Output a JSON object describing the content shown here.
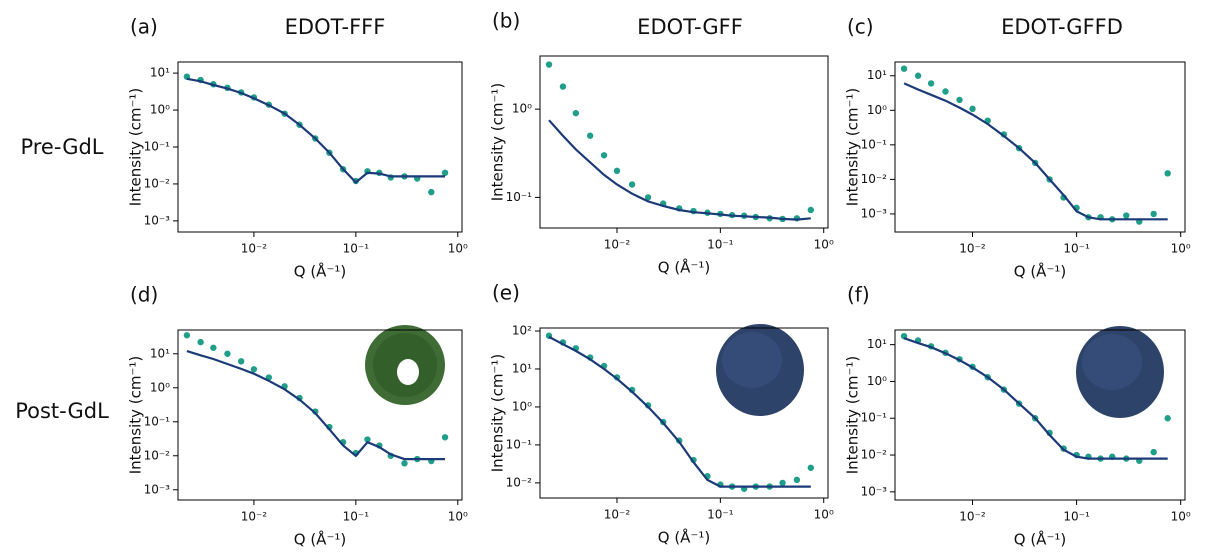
{
  "column_titles": [
    "EDOT-FFF",
    "EDOT-GFF",
    "EDOT-GFFD"
  ],
  "row_labels": [
    "Pre-GdL",
    "Post-GdL"
  ],
  "chart_data": [
    {
      "type": "scatter",
      "label": "(a)",
      "xlabel": "Q (Å⁻¹)",
      "ylabel": "Intensity (cm⁻¹)",
      "log_x": true,
      "log_y": true,
      "x": [
        0.0022,
        0.003,
        0.004,
        0.0055,
        0.0075,
        0.01,
        0.014,
        0.02,
        0.028,
        0.04,
        0.055,
        0.075,
        0.1,
        0.13,
        0.17,
        0.22,
        0.3,
        0.4,
        0.55,
        0.75
      ],
      "series": [
        {
          "kind": "points",
          "color": "#1f9e89",
          "values": [
            8,
            6.5,
            5,
            4,
            3,
            2.2,
            1.4,
            0.8,
            0.4,
            0.17,
            0.07,
            0.025,
            0.012,
            0.022,
            0.02,
            0.015,
            0.016,
            0.014,
            0.006,
            0.02
          ]
        },
        {
          "kind": "line",
          "color": "#1b3a78",
          "values": [
            7,
            6,
            4.8,
            3.8,
            2.9,
            2.1,
            1.35,
            0.8,
            0.4,
            0.17,
            0.07,
            0.025,
            0.011,
            0.02,
            0.019,
            0.016,
            0.016,
            0.016,
            0.016,
            0.016
          ]
        }
      ],
      "xlim": [
        0.0018,
        1.1
      ],
      "xticks": [
        {
          "value": 0.01,
          "label": "10⁻²"
        },
        {
          "value": 0.1,
          "label": "10⁻¹"
        },
        {
          "value": 1,
          "label": "10⁰"
        }
      ],
      "ylim": [
        0.0005,
        20
      ],
      "yticks": [
        {
          "value": 0.001,
          "label": "10⁻³"
        },
        {
          "value": 0.01,
          "label": "10⁻²"
        },
        {
          "value": 0.1,
          "label": "10⁻¹"
        },
        {
          "value": 1,
          "label": "10⁰"
        },
        {
          "value": 10,
          "label": "10¹"
        }
      ]
    },
    {
      "type": "scatter",
      "label": "(b)",
      "xlabel": "Q (Å⁻¹)",
      "ylabel": "Intensity (cm⁻¹)",
      "log_x": true,
      "log_y": true,
      "x": [
        0.0022,
        0.003,
        0.004,
        0.0055,
        0.0075,
        0.01,
        0.014,
        0.02,
        0.028,
        0.04,
        0.055,
        0.075,
        0.1,
        0.13,
        0.17,
        0.22,
        0.3,
        0.4,
        0.55,
        0.75
      ],
      "series": [
        {
          "kind": "points",
          "color": "#1f9e89",
          "values": [
            3.2,
            1.8,
            0.9,
            0.5,
            0.3,
            0.2,
            0.14,
            0.1,
            0.085,
            0.075,
            0.07,
            0.067,
            0.065,
            0.063,
            0.062,
            0.06,
            0.058,
            0.057,
            0.058,
            0.072
          ]
        },
        {
          "kind": "line",
          "color": "#1b3a78",
          "values": [
            0.75,
            0.5,
            0.35,
            0.25,
            0.18,
            0.14,
            0.11,
            0.09,
            0.08,
            0.072,
            0.068,
            0.066,
            0.064,
            0.062,
            0.061,
            0.06,
            0.059,
            0.057,
            0.056,
            0.058
          ]
        }
      ],
      "xlim": [
        0.0018,
        1.1
      ],
      "xticks": [
        {
          "value": 0.01,
          "label": "10⁻²"
        },
        {
          "value": 0.1,
          "label": "10⁻¹"
        },
        {
          "value": 1,
          "label": "10⁰"
        }
      ],
      "ylim": [
        0.045,
        4
      ],
      "yticks": [
        {
          "value": 0.1,
          "label": "10⁻¹"
        },
        {
          "value": 1,
          "label": "10⁰"
        }
      ]
    },
    {
      "type": "scatter",
      "label": "(c)",
      "xlabel": "Q (Å⁻¹)",
      "ylabel": "Intensity (cm⁻¹)",
      "log_x": true,
      "log_y": true,
      "x": [
        0.0022,
        0.003,
        0.004,
        0.0055,
        0.0075,
        0.01,
        0.014,
        0.02,
        0.028,
        0.04,
        0.055,
        0.075,
        0.1,
        0.13,
        0.17,
        0.22,
        0.3,
        0.4,
        0.55,
        0.75
      ],
      "series": [
        {
          "kind": "points",
          "color": "#1f9e89",
          "values": [
            16,
            10,
            6,
            3.5,
            2,
            1.1,
            0.5,
            0.2,
            0.08,
            0.03,
            0.01,
            0.003,
            0.0015,
            0.0008,
            0.0008,
            0.0007,
            0.0009,
            0.0006,
            0.001,
            0.015
          ]
        },
        {
          "kind": "line",
          "color": "#1b3a78",
          "values": [
            6,
            4,
            2.8,
            1.9,
            1.2,
            0.75,
            0.4,
            0.18,
            0.08,
            0.03,
            0.01,
            0.0035,
            0.0012,
            0.0008,
            0.0007,
            0.0007,
            0.0007,
            0.0007,
            0.0007,
            0.0007
          ]
        }
      ],
      "xlim": [
        0.0018,
        1.1
      ],
      "xticks": [
        {
          "value": 0.01,
          "label": "10⁻²"
        },
        {
          "value": 0.1,
          "label": "10⁻¹"
        },
        {
          "value": 1,
          "label": "10⁰"
        }
      ],
      "ylim": [
        0.0003,
        25
      ],
      "yticks": [
        {
          "value": 0.001,
          "label": "10⁻³"
        },
        {
          "value": 0.01,
          "label": "10⁻²"
        },
        {
          "value": 0.1,
          "label": "10⁻¹"
        },
        {
          "value": 1,
          "label": "10⁰"
        },
        {
          "value": 10,
          "label": "10¹"
        }
      ]
    },
    {
      "type": "scatter",
      "label": "(d)",
      "xlabel": "Q (Å⁻¹)",
      "ylabel": "Intensity (cm⁻¹)",
      "log_x": true,
      "log_y": true,
      "x": [
        0.0022,
        0.003,
        0.004,
        0.0055,
        0.0075,
        0.01,
        0.014,
        0.02,
        0.028,
        0.04,
        0.055,
        0.075,
        0.1,
        0.13,
        0.17,
        0.22,
        0.3,
        0.4,
        0.55,
        0.75
      ],
      "series": [
        {
          "kind": "points",
          "color": "#1f9e89",
          "values": [
            35,
            22,
            15,
            10,
            6,
            3.5,
            2,
            1.1,
            0.5,
            0.2,
            0.07,
            0.025,
            0.012,
            0.03,
            0.02,
            0.01,
            0.006,
            0.008,
            0.007,
            0.035
          ]
        },
        {
          "kind": "line",
          "color": "#1b3a78",
          "values": [
            12,
            9,
            7,
            5,
            3.6,
            2.6,
            1.6,
            0.9,
            0.45,
            0.18,
            0.06,
            0.02,
            0.01,
            0.025,
            0.018,
            0.011,
            0.008,
            0.008,
            0.008,
            0.008
          ]
        }
      ],
      "xlim": [
        0.0018,
        1.1
      ],
      "xticks": [
        {
          "value": 0.01,
          "label": "10⁻²"
        },
        {
          "value": 0.1,
          "label": "10⁻¹"
        },
        {
          "value": 1,
          "label": "10⁰"
        }
      ],
      "ylim": [
        0.0005,
        50
      ],
      "yticks": [
        {
          "value": 0.001,
          "label": "10⁻³"
        },
        {
          "value": 0.01,
          "label": "10⁻²"
        },
        {
          "value": 0.1,
          "label": "10⁻¹"
        },
        {
          "value": 1,
          "label": "10⁰"
        },
        {
          "value": 10,
          "label": "10¹"
        }
      ]
    },
    {
      "type": "scatter",
      "label": "(e)",
      "xlabel": "Q (Å⁻¹)",
      "ylabel": "Intensity (cm⁻¹)",
      "log_x": true,
      "log_y": true,
      "x": [
        0.0022,
        0.003,
        0.004,
        0.0055,
        0.0075,
        0.01,
        0.014,
        0.02,
        0.028,
        0.04,
        0.055,
        0.075,
        0.1,
        0.13,
        0.17,
        0.22,
        0.3,
        0.4,
        0.55,
        0.75
      ],
      "series": [
        {
          "kind": "points",
          "color": "#1f9e89",
          "values": [
            75,
            50,
            35,
            20,
            12,
            6,
            2.8,
            1.1,
            0.4,
            0.13,
            0.04,
            0.015,
            0.009,
            0.008,
            0.007,
            0.008,
            0.008,
            0.01,
            0.012,
            0.025
          ]
        },
        {
          "kind": "line",
          "color": "#1b3a78",
          "values": [
            70,
            45,
            30,
            18,
            10,
            5.5,
            2.5,
            1,
            0.38,
            0.12,
            0.035,
            0.012,
            0.008,
            0.008,
            0.008,
            0.008,
            0.008,
            0.008,
            0.008,
            0.008
          ]
        }
      ],
      "xlim": [
        0.0018,
        1.1
      ],
      "xticks": [
        {
          "value": 0.01,
          "label": "10⁻²"
        },
        {
          "value": 0.1,
          "label": "10⁻¹"
        },
        {
          "value": 1,
          "label": "10⁰"
        }
      ],
      "ylim": [
        0.004,
        120
      ],
      "yticks": [
        {
          "value": 0.01,
          "label": "10⁻²"
        },
        {
          "value": 0.1,
          "label": "10⁻¹"
        },
        {
          "value": 1,
          "label": "10⁰"
        },
        {
          "value": 10,
          "label": "10¹"
        },
        {
          "value": 100,
          "label": "10²"
        }
      ]
    },
    {
      "type": "scatter",
      "label": "(f)",
      "xlabel": "Q (Å⁻¹)",
      "ylabel": "Intensity (cm⁻¹)",
      "log_x": true,
      "log_y": true,
      "x": [
        0.0022,
        0.003,
        0.004,
        0.0055,
        0.0075,
        0.01,
        0.014,
        0.02,
        0.028,
        0.04,
        0.055,
        0.075,
        0.1,
        0.13,
        0.17,
        0.22,
        0.3,
        0.4,
        0.55,
        0.75
      ],
      "series": [
        {
          "kind": "points",
          "color": "#1f9e89",
          "values": [
            17,
            13,
            9,
            6,
            4,
            2.5,
            1.3,
            0.6,
            0.25,
            0.1,
            0.04,
            0.015,
            0.01,
            0.009,
            0.008,
            0.009,
            0.008,
            0.007,
            0.012,
            0.1
          ]
        },
        {
          "kind": "line",
          "color": "#1b3a78",
          "values": [
            15,
            11,
            8.5,
            5.8,
            3.8,
            2.4,
            1.3,
            0.6,
            0.25,
            0.1,
            0.035,
            0.014,
            0.009,
            0.008,
            0.008,
            0.008,
            0.008,
            0.008,
            0.008,
            0.008
          ]
        }
      ],
      "xlim": [
        0.0018,
        1.1
      ],
      "xticks": [
        {
          "value": 0.01,
          "label": "10⁻²"
        },
        {
          "value": 0.1,
          "label": "10⁻¹"
        },
        {
          "value": 1,
          "label": "10⁰"
        }
      ],
      "ylim": [
        0.0006,
        25
      ],
      "yticks": [
        {
          "value": 0.001,
          "label": "10⁻³"
        },
        {
          "value": 0.01,
          "label": "10⁻²"
        },
        {
          "value": 0.1,
          "label": "10⁻¹"
        },
        {
          "value": 1,
          "label": "10⁰"
        },
        {
          "value": 10,
          "label": "10¹"
        }
      ]
    }
  ]
}
